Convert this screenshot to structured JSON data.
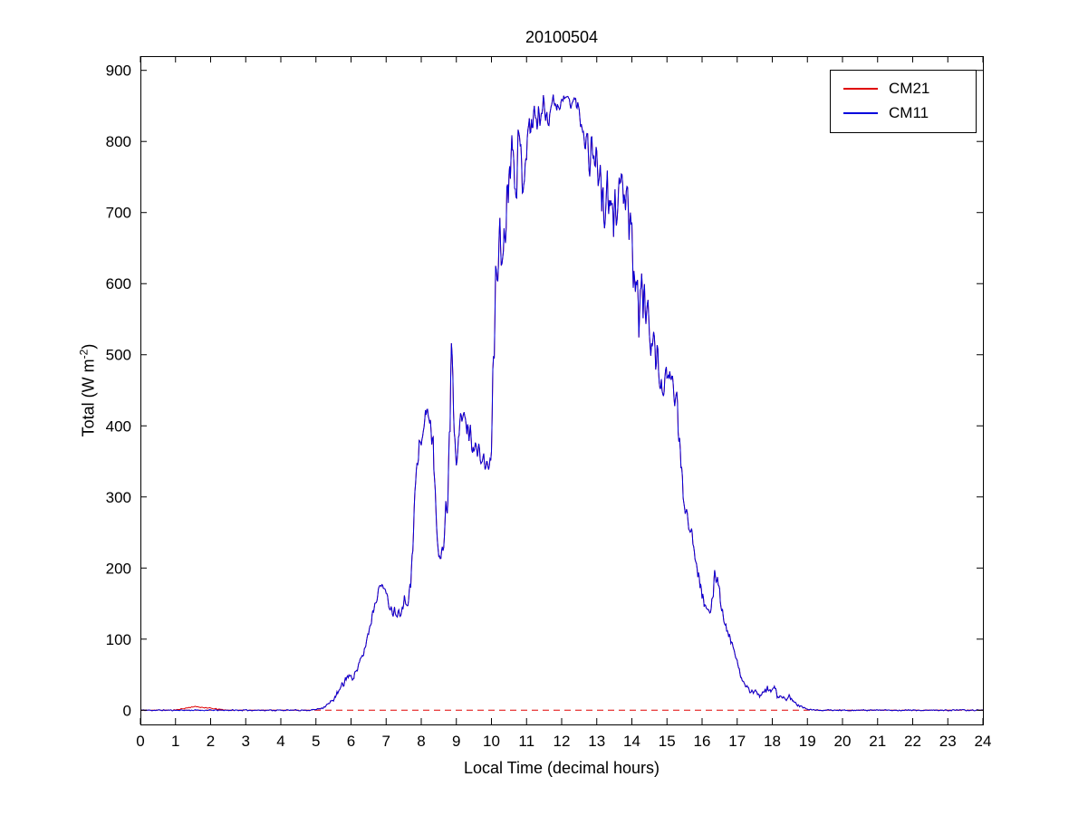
{
  "chart_data": {
    "type": "line",
    "title": "20100504",
    "xlabel": "Local Time (decimal hours)",
    "ylabel": {
      "prefix": "Total (W m",
      "sup": "-2",
      "suffix": ")"
    },
    "xlim": [
      0,
      24
    ],
    "ylim": [
      -20,
      920
    ],
    "xticks": [
      0,
      1,
      2,
      3,
      4,
      5,
      6,
      7,
      8,
      9,
      10,
      11,
      12,
      13,
      14,
      15,
      16,
      17,
      18,
      19,
      20,
      21,
      22,
      23,
      24
    ],
    "yticks": [
      0,
      100,
      200,
      300,
      400,
      500,
      600,
      700,
      800,
      900
    ],
    "grid": false,
    "legend": {
      "position": "top-right"
    },
    "series": [
      {
        "name": "CM21",
        "color": "#e00000",
        "style": "solid"
      },
      {
        "name": "CM11",
        "color": "#0000dd",
        "style": "solid"
      }
    ],
    "zero_line": {
      "y": 0,
      "color": "#e00000",
      "style": "dashed"
    },
    "sampling": {
      "dt": 0.02,
      "noise_seed": 11,
      "noise_mix": 0.55
    },
    "base_keypoints": [
      [
        0,
        0,
        1
      ],
      [
        0.5,
        0,
        1
      ],
      [
        1,
        0,
        1
      ],
      [
        2,
        0,
        1
      ],
      [
        3,
        0,
        1
      ],
      [
        4,
        0,
        1
      ],
      [
        4.8,
        0,
        1
      ],
      [
        5,
        1,
        1
      ],
      [
        5.2,
        4,
        2
      ],
      [
        5.4,
        10,
        3
      ],
      [
        5.6,
        22,
        5
      ],
      [
        5.8,
        38,
        8
      ],
      [
        5.9,
        50,
        8
      ],
      [
        6,
        45,
        6
      ],
      [
        6.1,
        52,
        8
      ],
      [
        6.2,
        60,
        8
      ],
      [
        6.35,
        78,
        8
      ],
      [
        6.5,
        110,
        10
      ],
      [
        6.65,
        145,
        10
      ],
      [
        6.8,
        172,
        6
      ],
      [
        6.9,
        178,
        5
      ],
      [
        7,
        162,
        8
      ],
      [
        7.1,
        148,
        8
      ],
      [
        7.2,
        140,
        10
      ],
      [
        7.35,
        138,
        10
      ],
      [
        7.5,
        150,
        12
      ],
      [
        7.6,
        158,
        15
      ],
      [
        7.7,
        170,
        20
      ],
      [
        7.75,
        220,
        30
      ],
      [
        7.85,
        330,
        35
      ],
      [
        7.95,
        370,
        30
      ],
      [
        8.05,
        395,
        25
      ],
      [
        8.15,
        420,
        15
      ],
      [
        8.25,
        415,
        15
      ],
      [
        8.35,
        350,
        40
      ],
      [
        8.45,
        250,
        30
      ],
      [
        8.55,
        222,
        15
      ],
      [
        8.65,
        235,
        25
      ],
      [
        8.75,
        300,
        50
      ],
      [
        8.82,
        430,
        70
      ],
      [
        8.87,
        545,
        35
      ],
      [
        8.92,
        430,
        50
      ],
      [
        9,
        380,
        40
      ],
      [
        9.1,
        395,
        30
      ],
      [
        9.2,
        415,
        20
      ],
      [
        9.3,
        400,
        20
      ],
      [
        9.45,
        380,
        20
      ],
      [
        9.6,
        362,
        18
      ],
      [
        9.75,
        352,
        15
      ],
      [
        9.9,
        342,
        12
      ],
      [
        10,
        355,
        25
      ],
      [
        10.05,
        480,
        60
      ],
      [
        10.12,
        600,
        60
      ],
      [
        10.2,
        660,
        60
      ],
      [
        10.3,
        635,
        55
      ],
      [
        10.4,
        690,
        60
      ],
      [
        10.5,
        770,
        45
      ],
      [
        10.6,
        795,
        35
      ],
      [
        10.7,
        765,
        55
      ],
      [
        10.8,
        790,
        40
      ],
      [
        10.9,
        758,
        55
      ],
      [
        11,
        798,
        40
      ],
      [
        11.1,
        818,
        30
      ],
      [
        11.2,
        838,
        25
      ],
      [
        11.3,
        828,
        30
      ],
      [
        11.4,
        842,
        22
      ],
      [
        11.5,
        848,
        25
      ],
      [
        11.6,
        836,
        28
      ],
      [
        11.7,
        852,
        16
      ],
      [
        11.8,
        858,
        14
      ],
      [
        11.9,
        850,
        18
      ],
      [
        12,
        854,
        15
      ],
      [
        12.1,
        862,
        10
      ],
      [
        12.2,
        858,
        12
      ],
      [
        12.3,
        853,
        14
      ],
      [
        12.35,
        860,
        10
      ],
      [
        12.5,
        842,
        18
      ],
      [
        12.6,
        822,
        24
      ],
      [
        12.7,
        802,
        30
      ],
      [
        12.8,
        782,
        38
      ],
      [
        12.9,
        790,
        30
      ],
      [
        13,
        772,
        40
      ],
      [
        13.1,
        742,
        48
      ],
      [
        13.2,
        705,
        55
      ],
      [
        13.3,
        722,
        48
      ],
      [
        13.4,
        685,
        55
      ],
      [
        13.5,
        700,
        50
      ],
      [
        13.6,
        728,
        40
      ],
      [
        13.7,
        748,
        30
      ],
      [
        13.8,
        722,
        40
      ],
      [
        13.9,
        682,
        55
      ],
      [
        14,
        645,
        65
      ],
      [
        14.1,
        602,
        55
      ],
      [
        14.2,
        565,
        50
      ],
      [
        14.3,
        588,
        48
      ],
      [
        14.4,
        562,
        42
      ],
      [
        14.5,
        542,
        40
      ],
      [
        14.6,
        520,
        40
      ],
      [
        14.7,
        492,
        38
      ],
      [
        14.8,
        470,
        30
      ],
      [
        14.9,
        452,
        25
      ],
      [
        15,
        462,
        24
      ],
      [
        15.1,
        470,
        20
      ],
      [
        15.2,
        452,
        24
      ],
      [
        15.3,
        425,
        28
      ],
      [
        15.4,
        335,
        30
      ],
      [
        15.5,
        292,
        20
      ],
      [
        15.6,
        272,
        16
      ],
      [
        15.7,
        250,
        14
      ],
      [
        15.8,
        222,
        14
      ],
      [
        15.9,
        192,
        14
      ],
      [
        16,
        166,
        12
      ],
      [
        16.1,
        142,
        10
      ],
      [
        16.2,
        132,
        10
      ],
      [
        16.3,
        158,
        18
      ],
      [
        16.35,
        196,
        14
      ],
      [
        16.45,
        184,
        14
      ],
      [
        16.55,
        150,
        14
      ],
      [
        16.65,
        118,
        10
      ],
      [
        16.75,
        108,
        7
      ],
      [
        16.85,
        95,
        6
      ],
      [
        16.95,
        76,
        6
      ],
      [
        17.05,
        56,
        5
      ],
      [
        17.15,
        42,
        4
      ],
      [
        17.25,
        32,
        4
      ],
      [
        17.4,
        28,
        5
      ],
      [
        17.55,
        24,
        6
      ],
      [
        17.7,
        20,
        5
      ],
      [
        17.85,
        28,
        8
      ],
      [
        17.95,
        24,
        8
      ],
      [
        18.05,
        34,
        10
      ],
      [
        18.15,
        22,
        7
      ],
      [
        18.25,
        16,
        5
      ],
      [
        18.4,
        14,
        5
      ],
      [
        18.5,
        20,
        7
      ],
      [
        18.6,
        12,
        4
      ],
      [
        18.75,
        7,
        3
      ],
      [
        18.9,
        3,
        2
      ],
      [
        19.05,
        1,
        1
      ],
      [
        19.3,
        0,
        1
      ],
      [
        20,
        0,
        1
      ],
      [
        21,
        0,
        1
      ],
      [
        22,
        0,
        1
      ],
      [
        23,
        0,
        1
      ],
      [
        24,
        0,
        1
      ]
    ],
    "cm21_delta_keypoints": [
      [
        0.9,
        0
      ],
      [
        1.2,
        2
      ],
      [
        1.5,
        5
      ],
      [
        1.8,
        4
      ],
      [
        2.1,
        2
      ],
      [
        2.5,
        0
      ]
    ]
  }
}
